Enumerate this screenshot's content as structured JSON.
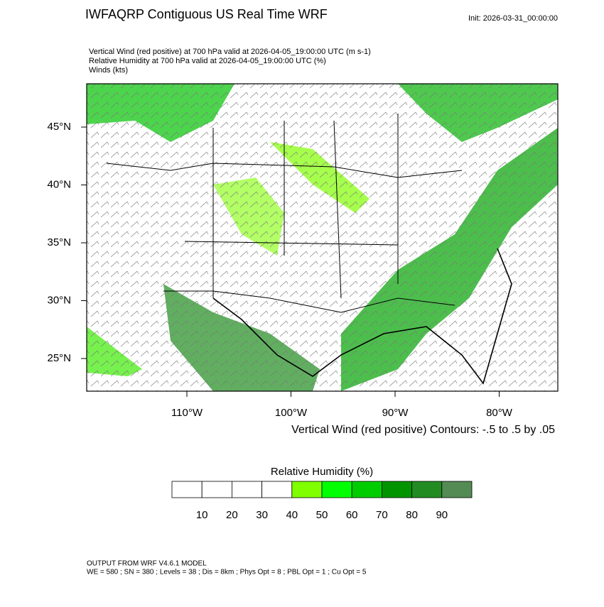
{
  "header": {
    "title": "IWFAQRP Contiguous US Real Time WRF",
    "init": "Init: 2026-03-31_00:00:00"
  },
  "subtitles": [
    "Vertical Wind (red positive) at 700 hPa valid at 2026-04-05_19:00:00 UTC   (m s-1)",
    "Relative Humidity at 700 hPa valid at 2026-04-05_19:00:00 UTC   (%)",
    "Winds   (kts)"
  ],
  "map": {
    "lat_ticks": [
      {
        "value": 45,
        "label": "45°N"
      },
      {
        "value": 40,
        "label": "40°N"
      },
      {
        "value": 35,
        "label": "35°N"
      },
      {
        "value": 30,
        "label": "30°N"
      },
      {
        "value": 25,
        "label": "25°N"
      }
    ],
    "lon_ticks": [
      {
        "value": -110,
        "label": "110°W"
      },
      {
        "value": -100,
        "label": "100°W"
      },
      {
        "value": -90,
        "label": "90°W"
      },
      {
        "value": -80,
        "label": "80°W"
      }
    ],
    "contour_note": "Vertical Wind (red positive) Contours: -.5 to .5 by .05"
  },
  "colorbar": {
    "title": "Relative Humidity  (%)",
    "colors": [
      "#ffffff",
      "#ffffff",
      "#ffffff",
      "#ffffff",
      "#80ff00",
      "#00ff00",
      "#00cd00",
      "#009400",
      "#228b22",
      "#548b54"
    ],
    "ticks": [
      10,
      20,
      30,
      40,
      50,
      60,
      70,
      80,
      90
    ]
  },
  "footer": [
    "OUTPUT FROM WRF V4.6.1 MODEL",
    "WE = 580 ; SN = 380 ; Levels = 38 ; Dis = 8km ; Phys Opt = 8 ; PBL Opt = 1 ; Cu Opt = 5"
  ]
}
